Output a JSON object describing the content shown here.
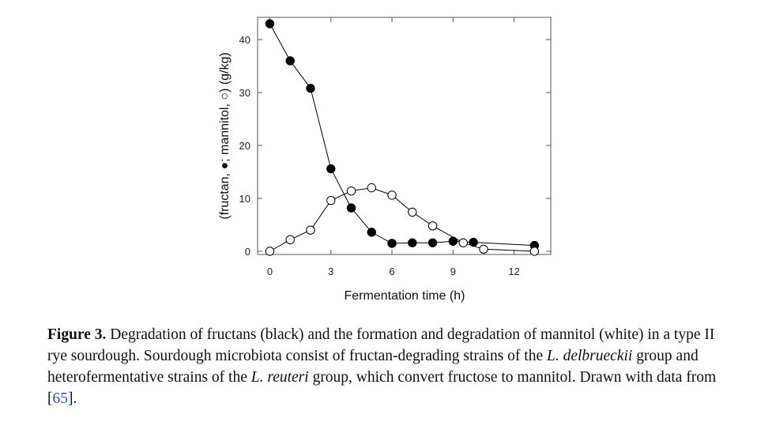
{
  "chart_data": {
    "type": "line",
    "xlabel": "Fermentation time (h)",
    "ylabel": "(fructan, ●; mannitol, ○) (g/kg)",
    "xlim": [
      -0.6,
      13.8
    ],
    "ylim": [
      -0.6,
      44.2
    ],
    "xticks": [
      0,
      3,
      6,
      9,
      12
    ],
    "yticks": [
      0,
      10,
      20,
      30,
      40
    ],
    "grid": false,
    "series": [
      {
        "name": "fructan",
        "marker": "filled-circle",
        "color": "#000000",
        "x": [
          0,
          1,
          2,
          3,
          4,
          5,
          6,
          7,
          8,
          9,
          10,
          13
        ],
        "y": [
          43,
          36,
          30.8,
          15.6,
          8.2,
          3.6,
          1.5,
          1.6,
          1.6,
          1.9,
          1.7,
          1.1
        ]
      },
      {
        "name": "mannitol",
        "marker": "open-circle",
        "color": "#ffffff",
        "x": [
          0,
          1,
          2,
          3,
          4,
          5,
          6,
          7,
          8,
          9.5,
          10.5,
          13
        ],
        "y": [
          0,
          2.2,
          4.0,
          9.6,
          11.4,
          12.0,
          10.6,
          7.4,
          4.8,
          1.6,
          0.4,
          0
        ]
      }
    ]
  },
  "caption": {
    "label": "Figure 3.",
    "text1": " Degradation of fructans (black) and the formation and degradation of mannitol (white) in a type II rye sourdough. Sourdough microbiota consist of fructan-degrading strains of the ",
    "italic1": "L. delbrueckii",
    "text2": " group and heterofermentative strains of the ",
    "italic2": "L. reuteri",
    "text3": " group, which convert fructose to mannitol. Drawn with data from [",
    "ref": "65",
    "text4": "]."
  }
}
